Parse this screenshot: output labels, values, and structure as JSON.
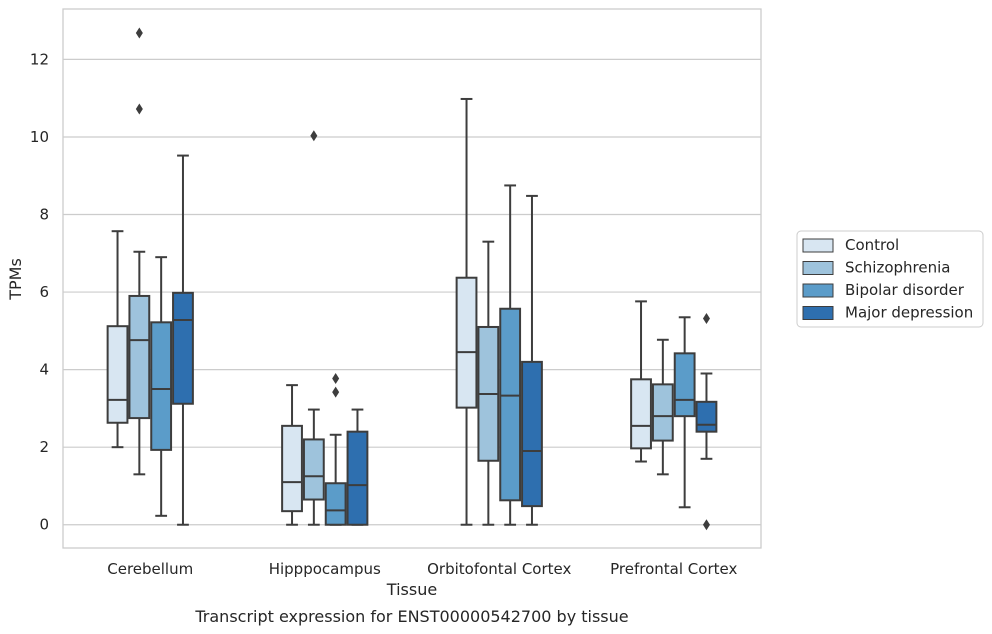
{
  "caption": "Transcript expression for ENST00000542700 by tissue",
  "chart_data": {
    "type": "boxplot",
    "xlabel": "Tissue",
    "ylabel": "TPMs",
    "ylim": [
      -0.6,
      13.3
    ],
    "yticks": [
      0,
      2,
      4,
      6,
      8,
      10,
      12
    ],
    "grid": "horizontal",
    "legend_position": "right",
    "categories": [
      "Cerebellum",
      "Hipppocampus",
      "Orbitofontal Cortex",
      "Prefrontal Cortex"
    ],
    "series": [
      {
        "name": "Control",
        "color": "#d8e6f2",
        "boxes": [
          {
            "whislo": 2.0,
            "q1": 2.63,
            "med": 3.22,
            "q3": 5.12,
            "whishi": 7.57,
            "fliers": []
          },
          {
            "whislo": 0.0,
            "q1": 0.35,
            "med": 1.1,
            "q3": 2.55,
            "whishi": 3.6,
            "fliers": []
          },
          {
            "whislo": 0.0,
            "q1": 3.02,
            "med": 4.45,
            "q3": 6.37,
            "whishi": 10.98,
            "fliers": []
          },
          {
            "whislo": 1.63,
            "q1": 1.97,
            "med": 2.55,
            "q3": 3.75,
            "whishi": 5.76,
            "fliers": []
          }
        ]
      },
      {
        "name": "Schizophrenia",
        "color": "#9ec3dc",
        "boxes": [
          {
            "whislo": 1.3,
            "q1": 2.75,
            "med": 4.76,
            "q3": 5.9,
            "whishi": 7.04,
            "fliers": [
              10.72,
              12.68
            ]
          },
          {
            "whislo": 0.0,
            "q1": 0.65,
            "med": 1.25,
            "q3": 2.2,
            "whishi": 2.97,
            "fliers": [
              10.03
            ]
          },
          {
            "whislo": 0.0,
            "q1": 1.65,
            "med": 3.37,
            "q3": 5.1,
            "whishi": 7.3,
            "fliers": []
          },
          {
            "whislo": 1.3,
            "q1": 2.17,
            "med": 2.8,
            "q3": 3.62,
            "whishi": 4.77,
            "fliers": []
          }
        ]
      },
      {
        "name": "Bipolar disorder",
        "color": "#5b9cc9",
        "boxes": [
          {
            "whislo": 0.23,
            "q1": 1.93,
            "med": 3.5,
            "q3": 5.22,
            "whishi": 6.9,
            "fliers": []
          },
          {
            "whislo": 0.0,
            "q1": 0.0,
            "med": 0.37,
            "q3": 1.07,
            "whishi": 2.32,
            "fliers": [
              3.42,
              3.77
            ]
          },
          {
            "whislo": 0.0,
            "q1": 0.63,
            "med": 3.33,
            "q3": 5.57,
            "whishi": 8.75,
            "fliers": []
          },
          {
            "whislo": 0.45,
            "q1": 2.8,
            "med": 3.22,
            "q3": 4.42,
            "whishi": 5.35,
            "fliers": []
          }
        ]
      },
      {
        "name": "Major depression",
        "color": "#2e6faf",
        "boxes": [
          {
            "whislo": 0.0,
            "q1": 3.12,
            "med": 5.28,
            "q3": 5.98,
            "whishi": 9.52,
            "fliers": []
          },
          {
            "whislo": 0.0,
            "q1": 0.0,
            "med": 1.02,
            "q3": 2.4,
            "whishi": 2.97,
            "fliers": []
          },
          {
            "whislo": 0.0,
            "q1": 0.48,
            "med": 1.9,
            "q3": 4.2,
            "whishi": 8.48,
            "fliers": []
          },
          {
            "whislo": 1.7,
            "q1": 2.4,
            "med": 2.58,
            "q3": 3.17,
            "whishi": 3.9,
            "fliers": [
              0.0,
              5.32
            ]
          }
        ]
      }
    ]
  }
}
